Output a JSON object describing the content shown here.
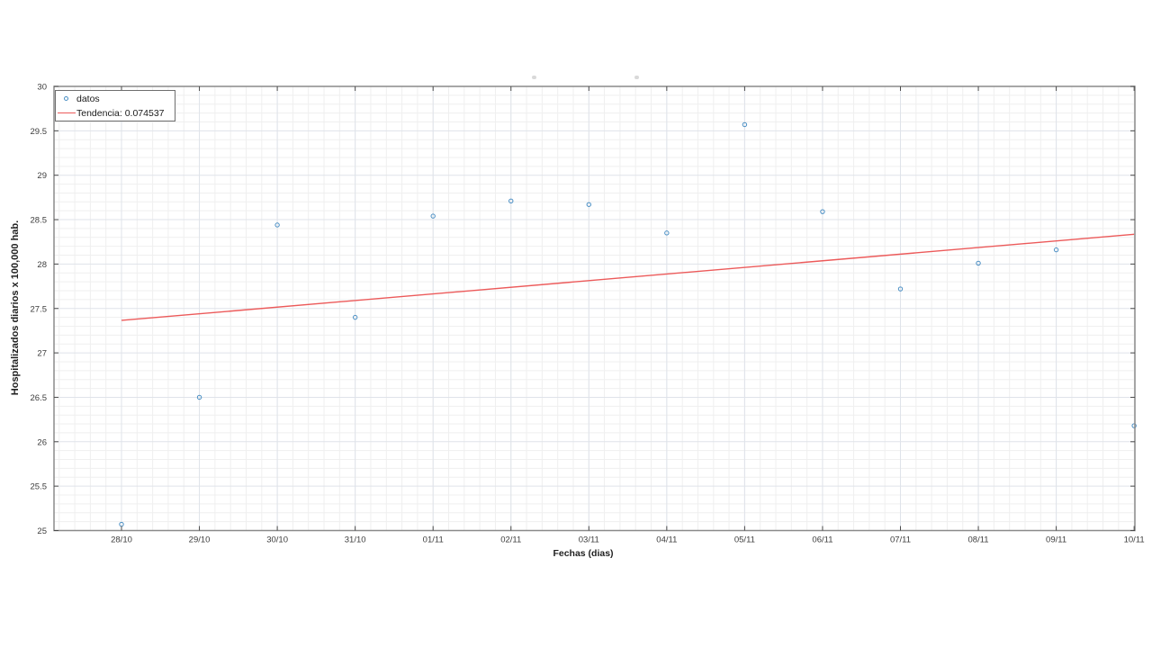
{
  "window": {
    "background": "#ffffff"
  },
  "chart_data": {
    "type": "scatter",
    "xlabel": "Fechas (dias)",
    "ylabel": "Hospitalizados diarios x 100,000 hab.",
    "categories": [
      "28/10",
      "29/10",
      "30/10",
      "31/10",
      "01/11",
      "02/11",
      "03/11",
      "04/11",
      "05/11",
      "06/11",
      "07/11",
      "08/11",
      "09/11",
      "10/11"
    ],
    "y_tick_labels": [
      "25",
      "25.5",
      "26",
      "26.5",
      "27",
      "27.5",
      "28",
      "28.5",
      "29",
      "29.5",
      "30"
    ],
    "ylim": [
      25,
      30
    ],
    "y_tick_step": 0.5,
    "grid": "on",
    "minor_grid": "on",
    "legend_position": "top-left",
    "series": [
      {
        "name": "datos",
        "type": "scatter",
        "marker": "open-circle",
        "color": "#4a8fc4",
        "values": [
          25.07,
          26.5,
          28.44,
          27.4,
          28.54,
          28.71,
          28.67,
          28.35,
          29.57,
          28.59,
          27.72,
          28.01,
          28.16,
          26.18
        ]
      },
      {
        "name": "Tendencia: 0.074537",
        "type": "line",
        "color": "#ec5a5a",
        "slope_per_day": 0.074537,
        "endpoints_x_days": [
          0,
          13
        ],
        "endpoints_y": [
          27.366,
          28.335
        ]
      }
    ],
    "colors": {
      "marker_blue": "#4a8fc4",
      "trend_red": "#ec5a5a",
      "axis_border": "#8a8a8a",
      "major_grid": "#dfe3ea",
      "minor_grid": "#efefef",
      "tick_mark": "#4b4b4b",
      "tick_label": "#3c3c3c"
    }
  }
}
